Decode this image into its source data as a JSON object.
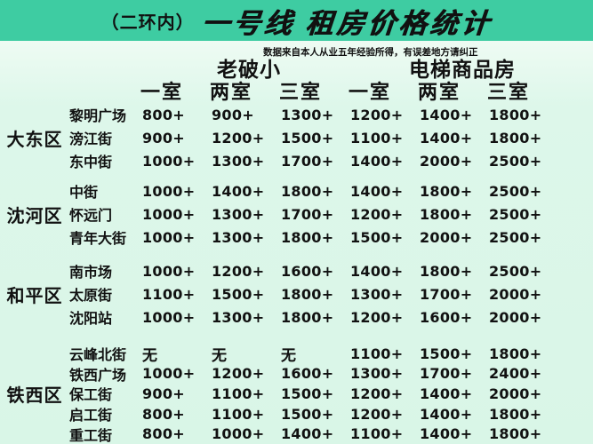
{
  "colors": {
    "accent_teal": "#3ecca2",
    "background_mint": "#d9f6e7",
    "text": "#111111"
  },
  "header": {
    "title_prefix": "（二环内）",
    "title_main": "一号线 租房价格统计",
    "subtitle": "数据来自本人从业五年经验所得，有误差地方请纠正"
  },
  "chart_data": {
    "type": "table",
    "title": "（二环内）一号线 租房价格统计",
    "group_headers": [
      "老破小",
      "电梯商品房"
    ],
    "room_headers": [
      "一室",
      "两室",
      "三室",
      "一室",
      "两室",
      "三室"
    ],
    "districts": [
      {
        "name": "大东区",
        "rows": [
          {
            "street": "黎明广场",
            "values": [
              "800+",
              "900+",
              "1300+",
              "1200+",
              "1400+",
              "1800+"
            ]
          },
          {
            "street": "滂江街",
            "values": [
              "900+",
              "1200+",
              "1500+",
              "1100+",
              "1400+",
              "1800+"
            ]
          },
          {
            "street": "东中街",
            "values": [
              "1000+",
              "1300+",
              "1700+",
              "1400+",
              "2000+",
              "2500+"
            ]
          }
        ]
      },
      {
        "name": "沈河区",
        "rows": [
          {
            "street": "中街",
            "values": [
              "1000+",
              "1400+",
              "1800+",
              "1400+",
              "1800+",
              "2500+"
            ]
          },
          {
            "street": "怀远门",
            "values": [
              "1000+",
              "1300+",
              "1700+",
              "1200+",
              "1800+",
              "2500+"
            ]
          },
          {
            "street": "青年大街",
            "values": [
              "1000+",
              "1300+",
              "1800+",
              "1500+",
              "2000+",
              "2500+"
            ]
          }
        ]
      },
      {
        "name": "和平区",
        "rows": [
          {
            "street": "南市场",
            "values": [
              "1000+",
              "1200+",
              "1600+",
              "1400+",
              "1800+",
              "2500+"
            ]
          },
          {
            "street": "太原街",
            "values": [
              "1100+",
              "1500+",
              "1800+",
              "1300+",
              "1700+",
              "2000+"
            ]
          },
          {
            "street": "沈阳站",
            "values": [
              "1000+",
              "1300+",
              "1800+",
              "1200+",
              "1600+",
              "2000+"
            ]
          }
        ]
      },
      {
        "name": "铁西区",
        "rows": [
          {
            "street": "云峰北街",
            "values": [
              "无",
              "无",
              "无",
              "1100+",
              "1500+",
              "1800+"
            ]
          },
          {
            "street": "铁西广场",
            "values": [
              "1000+",
              "1200+",
              "1600+",
              "1300+",
              "1700+",
              "2400+"
            ]
          },
          {
            "street": "保工街",
            "values": [
              "900+",
              "1100+",
              "1500+",
              "1200+",
              "1400+",
              "2000+"
            ]
          },
          {
            "street": "启工街",
            "values": [
              "800+",
              "1100+",
              "1500+",
              "1200+",
              "1400+",
              "1800+"
            ]
          },
          {
            "street": "重工街",
            "values": [
              "800+",
              "1000+",
              "1400+",
              "1100+",
              "1400+",
              "1800+"
            ]
          }
        ]
      }
    ]
  }
}
